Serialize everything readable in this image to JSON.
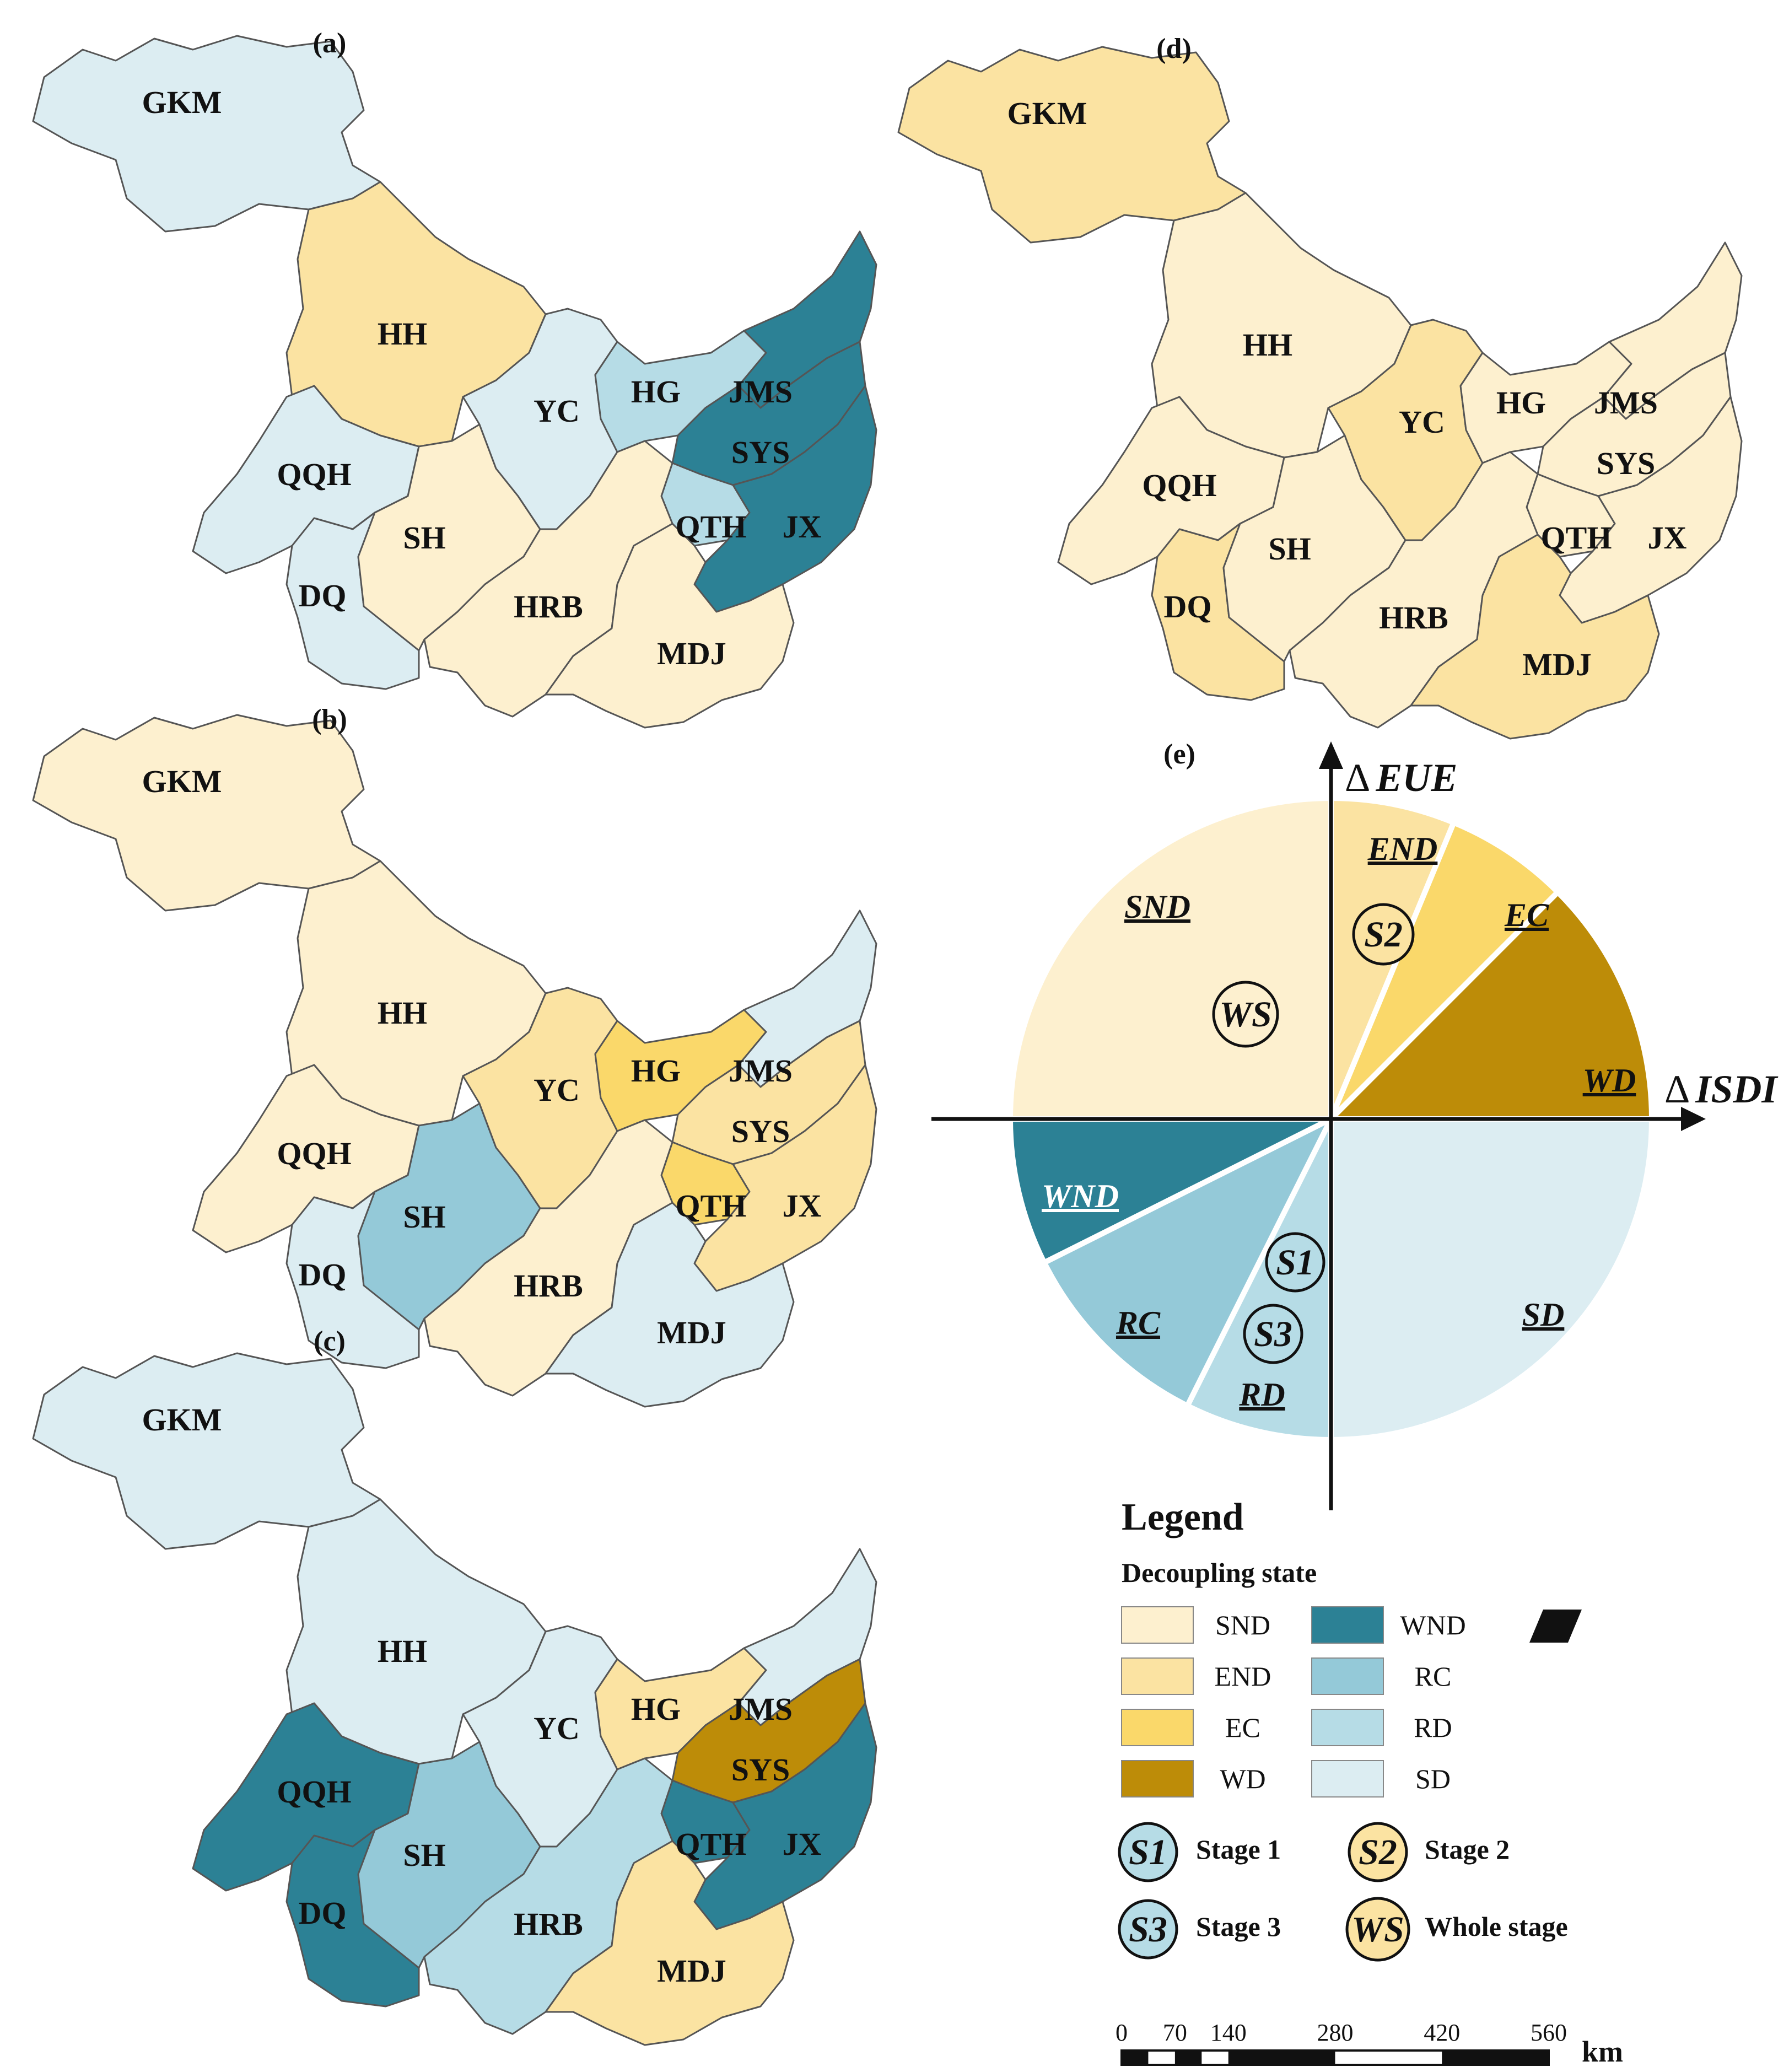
{
  "colors": {
    "SND": "#fdf0cf",
    "END": "#fbe3a2",
    "EC": "#fad86a",
    "WD": "#bd8c08",
    "WND": "#2c8195",
    "RC": "#94c9d8",
    "RD": "#b6dce6",
    "SD": "#dcedf2"
  },
  "panels": [
    {
      "label": "(a)",
      "regions": {
        "GKM": "SD",
        "HH": "END",
        "YC": "SD",
        "HG": "RD",
        "JMS": "WND",
        "SYS": "WND",
        "QQH": "SD",
        "SH": "SND",
        "QTH": "RD",
        "JX": "WND",
        "DQ": "SD",
        "HRB": "SND",
        "MDJ": "SND"
      }
    },
    {
      "label": "(b)",
      "regions": {
        "GKM": "SND",
        "HH": "SND",
        "YC": "END",
        "HG": "EC",
        "JMS": "SD",
        "SYS": "END",
        "QQH": "SND",
        "SH": "RC",
        "QTH": "EC",
        "JX": "END",
        "DQ": "SD",
        "HRB": "SND",
        "MDJ": "SD"
      }
    },
    {
      "label": "(c)",
      "regions": {
        "GKM": "SD",
        "HH": "SD",
        "YC": "SD",
        "HG": "END",
        "JMS": "SD",
        "SYS": "WD",
        "QQH": "WND",
        "SH": "RC",
        "QTH": "WND",
        "JX": "WND",
        "DQ": "WND",
        "HRB": "RD",
        "MDJ": "END"
      }
    },
    {
      "label": "(d)",
      "regions": {
        "GKM": "END",
        "HH": "SND",
        "YC": "END",
        "HG": "SND",
        "JMS": "SND",
        "SYS": "SND",
        "QQH": "SND",
        "SH": "SND",
        "QTH": "SND",
        "JX": "SND",
        "DQ": "END",
        "HRB": "SND",
        "MDJ": "END"
      }
    }
  ],
  "diagram": {
    "label": "(e)",
    "y_axis": "EUE",
    "x_axis": "ISDI",
    "delta": "Δ",
    "sectors": [
      "SND",
      "END",
      "EC",
      "WD",
      "SD",
      "RD",
      "RC",
      "WND"
    ],
    "stages": {
      "S2": "S2",
      "WS": "WS",
      "S1": "S1",
      "S3": "S3"
    }
  },
  "legend": {
    "title": "Legend",
    "subtitle": "Decoupling state",
    "items_left": [
      "SND",
      "END",
      "EC",
      "WD"
    ],
    "items_right": [
      "WND",
      "RC",
      "RD",
      "SD"
    ],
    "stages": [
      {
        "badge": "S1",
        "text": "Stage 1"
      },
      {
        "badge": "S2",
        "text": "Stage 2"
      },
      {
        "badge": "S3",
        "text": "Stage 3"
      },
      {
        "badge": "WS",
        "text": "Whole stage"
      }
    ],
    "scale_ticks": [
      "0",
      "70",
      "140",
      "280",
      "420",
      "560"
    ],
    "scale_unit": "km"
  }
}
